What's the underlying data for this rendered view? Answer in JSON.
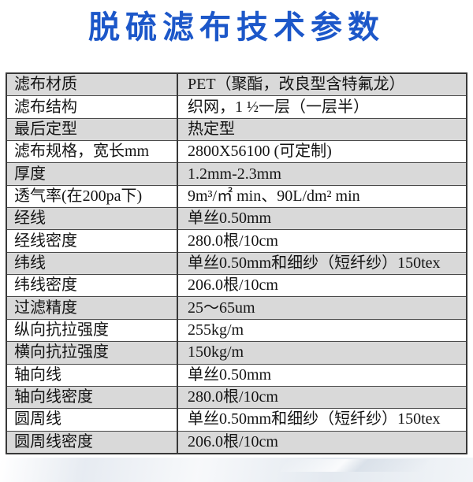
{
  "header": {
    "title": "脱硫滤布技术参数"
  },
  "colors": {
    "title_blue": "#1c57c9",
    "shaded_row_gray": "#d9d9d9",
    "table_border": "#383838",
    "text": "#141414",
    "bottom_band": "#e4e9f0"
  },
  "table": {
    "rows": [
      {
        "label": "滤布材质",
        "value": "PET（聚酯，改良型含特氟龙）"
      },
      {
        "label": "滤布结构",
        "value": "织网，1 ½一层（一层半）"
      },
      {
        "label": "最后定型",
        "value": "热定型"
      },
      {
        "label": "滤布规格，宽长mm",
        "value": "2800X56100 (可定制)"
      },
      {
        "label": "厚度",
        "value": "1.2mm-2.3mm"
      },
      {
        "label": "透气率(在200pa下)",
        "value": "9m³/㎡ min、90L/dm² min"
      },
      {
        "label": "经线",
        "value": "单丝0.50mm"
      },
      {
        "label": "经线密度",
        "value": "280.0根/10cm"
      },
      {
        "label": "纬线",
        "value": "单丝0.50mm和细纱（短纤纱）150tex"
      },
      {
        "label": "纬线密度",
        "value": "206.0根/10cm"
      },
      {
        "label": "过滤精度",
        "value": "25～65um"
      },
      {
        "label": "纵向抗拉强度",
        "value": "255kg/m"
      },
      {
        "label": "横向抗拉强度",
        "value": "150kg/m"
      },
      {
        "label": "轴向线",
        "value": "单丝0.50mm"
      },
      {
        "label": "轴向线密度",
        "value": "280.0根/10cm"
      },
      {
        "label": "圆周线",
        "value": "单丝0.50mm和细纱（短纤纱）150tex"
      },
      {
        "label": "圆周线密度",
        "value": "206.0根/10cm"
      }
    ]
  }
}
